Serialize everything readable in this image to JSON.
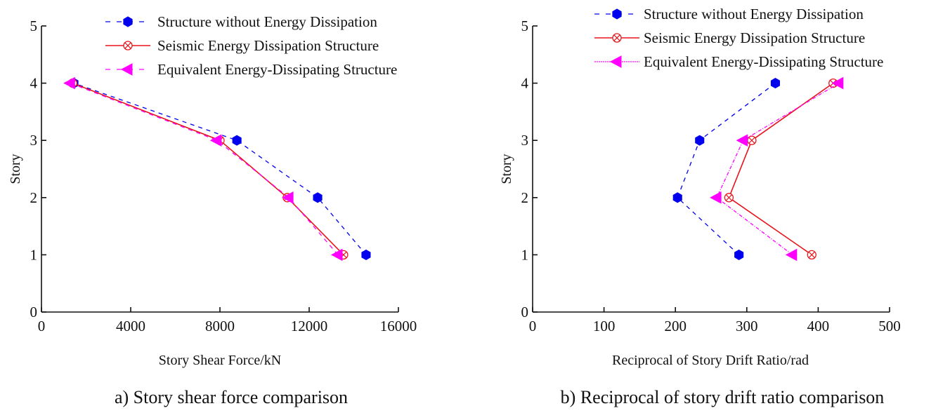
{
  "chart_data": [
    {
      "id": "a",
      "type": "line",
      "caption": "a) Story shear force comparison",
      "xlabel": "Story Shear Force/kN",
      "ylabel": "Story",
      "xlim": [
        0,
        16000
      ],
      "ylim": [
        0,
        5
      ],
      "xticks": [
        0,
        4000,
        8000,
        12000,
        16000
      ],
      "xtick_labels": [
        "0",
        "4000",
        "8000",
        "12000",
        "16000"
      ],
      "yticks": [
        0,
        1,
        2,
        3,
        4,
        5
      ],
      "ytick_labels": [
        "0",
        "1",
        "2",
        "3",
        "4",
        "5"
      ],
      "grid": false,
      "legend_position": "top-right",
      "series": [
        {
          "name": "Structure without Energy Dissipation",
          "color": "#0000ee",
          "line_style": "dashed",
          "marker": "hexagon-filled",
          "x": [
            14550,
            12380,
            8760,
            1450
          ],
          "y": [
            1,
            2,
            3,
            4
          ]
        },
        {
          "name": "Seismic Energy Dissipation Structure",
          "color": "#e8141c",
          "line_style": "solid",
          "marker": "circle-cross",
          "x": [
            13540,
            11020,
            8000,
            1400
          ],
          "y": [
            1,
            2,
            3,
            4
          ]
        },
        {
          "name": "Equivalent Energy-Dissipating Structure",
          "color": "#ff00ff",
          "line_style": "dashed",
          "marker": "triangle-left-filled",
          "x": [
            13290,
            11090,
            7870,
            1300
          ],
          "y": [
            1,
            2,
            3,
            4
          ]
        }
      ]
    },
    {
      "id": "b",
      "type": "line",
      "caption": "b) Reciprocal of story drift ratio comparison",
      "xlabel": "Reciprocal of Story Drift Ratio/rad",
      "ylabel": "Story",
      "xlim": [
        0,
        500
      ],
      "ylim": [
        0,
        5
      ],
      "xticks": [
        0,
        100,
        200,
        300,
        400,
        500
      ],
      "xtick_labels": [
        "0",
        "100",
        "200",
        "300",
        "400",
        "500"
      ],
      "yticks": [
        0,
        1,
        2,
        3,
        4,
        5
      ],
      "ytick_labels": [
        "0",
        "1",
        "2",
        "3",
        "4",
        "5"
      ],
      "grid": false,
      "legend_position": "top-right",
      "series": [
        {
          "name": "Structure without Energy Dissipation",
          "color": "#0000ee",
          "line_style": "dashed",
          "marker": "hexagon-filled",
          "x": [
            289,
            203,
            234,
            340
          ],
          "y": [
            1,
            2,
            3,
            4
          ]
        },
        {
          "name": "Seismic Energy Dissipation Structure",
          "color": "#e8141c",
          "line_style": "solid",
          "marker": "circle-cross",
          "x": [
            391,
            275,
            307,
            421
          ],
          "y": [
            1,
            2,
            3,
            4
          ]
        },
        {
          "name": "Equivalent Energy-Dissipating Structure",
          "color": "#ff00ff",
          "line_style": "dash-dot",
          "marker": "triangle-left-filled",
          "x": [
            364,
            258,
            295,
            429
          ],
          "y": [
            1,
            2,
            3,
            4
          ]
        }
      ]
    }
  ]
}
